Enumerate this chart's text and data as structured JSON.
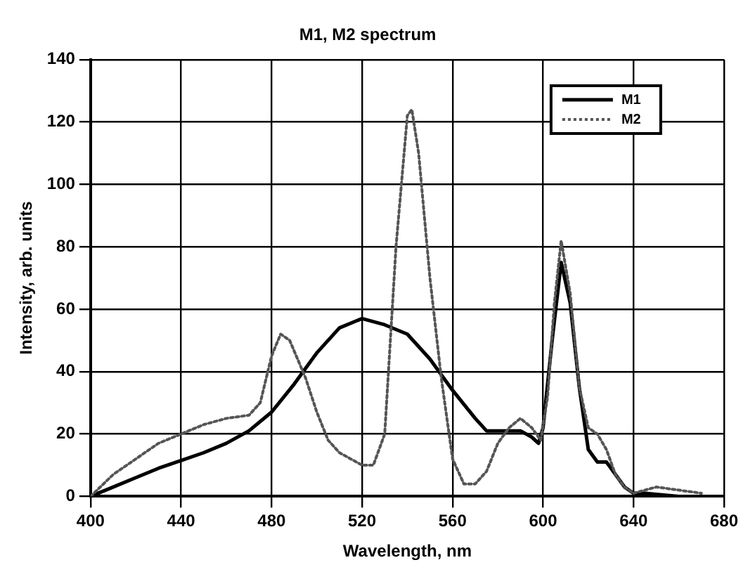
{
  "chart_data": {
    "type": "line",
    "title": "M1, M2 spectrum",
    "xlabel": "Wavelength, nm",
    "ylabel": "Intensity, arb. units",
    "xlim": [
      400,
      680
    ],
    "xticks": [
      400,
      440,
      480,
      520,
      560,
      600,
      640,
      680
    ],
    "ylim": [
      0,
      140
    ],
    "yticks": [
      0,
      20,
      40,
      60,
      80,
      100,
      120,
      140
    ],
    "grid": true,
    "legend": "top right",
    "marker": "none",
    "series": [
      {
        "name": "M1",
        "color": "#000000",
        "line_style": "solid",
        "x": [
          400,
          410,
          420,
          430,
          440,
          450,
          460,
          470,
          480,
          490,
          500,
          510,
          520,
          530,
          540,
          550,
          560,
          570,
          575,
          580,
          590,
          595,
          598,
          600,
          604,
          608,
          612,
          616,
          620,
          624,
          628,
          632,
          636,
          640,
          645,
          660,
          670
        ],
        "values": [
          0,
          3,
          6,
          9,
          11.5,
          14,
          17,
          21,
          27,
          36,
          46,
          54,
          57,
          55,
          52,
          44,
          34,
          25,
          21,
          21,
          21,
          19,
          17,
          22,
          50,
          75,
          62,
          35,
          15,
          11,
          11,
          7,
          3,
          1,
          1,
          0,
          0
        ]
      },
      {
        "name": "M2",
        "color": "#555555",
        "line_style": "dotted",
        "x": [
          400,
          410,
          420,
          430,
          440,
          450,
          460,
          470,
          475,
          480,
          484,
          488,
          495,
          500,
          505,
          510,
          520,
          525,
          530,
          535,
          540,
          542,
          545,
          550,
          555,
          560,
          565,
          570,
          575,
          580,
          585,
          590,
          595,
          599,
          602,
          605,
          608,
          612,
          616,
          620,
          624,
          628,
          632,
          636,
          640,
          650,
          660,
          670
        ],
        "values": [
          0,
          7,
          12,
          17,
          20,
          23,
          25,
          26,
          30,
          45,
          52,
          50,
          38,
          27,
          18,
          14,
          10,
          10,
          20,
          80,
          122,
          124,
          110,
          70,
          38,
          12,
          4,
          4,
          8,
          17,
          22,
          25,
          22,
          18,
          32,
          62,
          82,
          65,
          35,
          22,
          20,
          15,
          7,
          3,
          1,
          3,
          2,
          1
        ]
      }
    ]
  }
}
